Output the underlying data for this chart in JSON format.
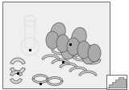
{
  "bg_color": "#efefef",
  "outer_bg": "#ffffff",
  "dark_line": "#333333",
  "mid_gray": "#aaaaaa",
  "part_fill": "#d5d5d5",
  "part_fill_dark": "#b0b0b0",
  "part_edge": "#555555",
  "light_gray": "#e0e0e0",
  "white": "#ffffff"
}
